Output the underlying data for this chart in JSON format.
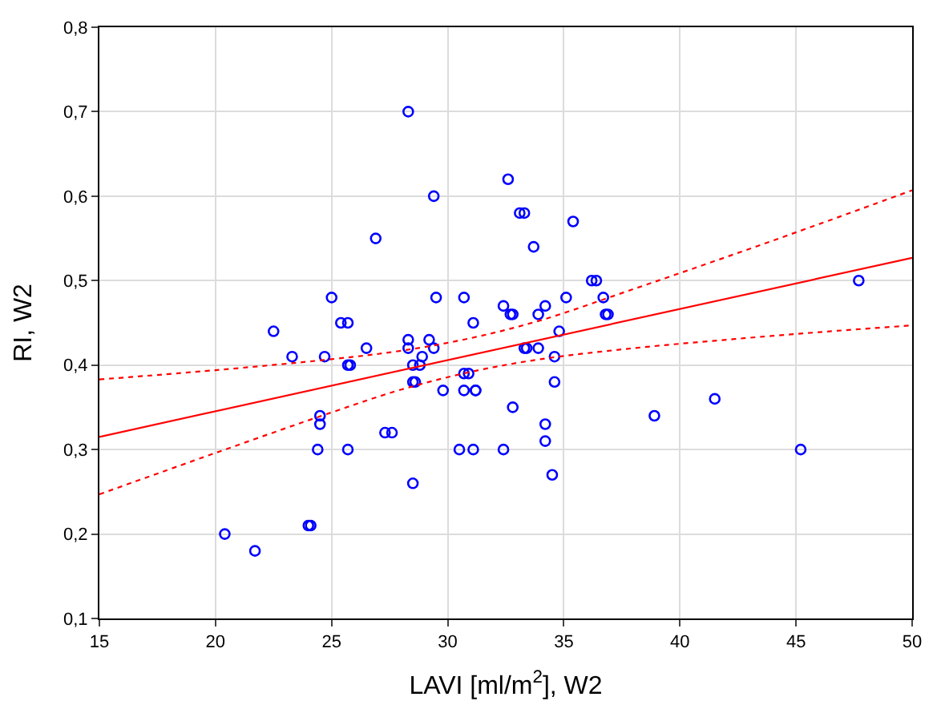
{
  "chart_data": {
    "type": "scatter",
    "xlabel": "LAVI [ml/m$^{2}$], W2",
    "ylabel": "RI, W2",
    "xlim": [
      15,
      50
    ],
    "ylim": [
      0.1,
      0.8
    ],
    "xticks": [
      15,
      20,
      25,
      30,
      35,
      40,
      45,
      50
    ],
    "yticks": [
      {
        "value": 0.1,
        "label": "0,1"
      },
      {
        "value": 0.2,
        "label": "0,2"
      },
      {
        "value": 0.3,
        "label": "0,3"
      },
      {
        "value": 0.4,
        "label": "0,4"
      },
      {
        "value": 0.5,
        "label": "0,5"
      },
      {
        "value": 0.6,
        "label": "0,6"
      },
      {
        "value": 0.7,
        "label": "0,7"
      },
      {
        "value": 0.8,
        "label": "0,8"
      }
    ],
    "grid": true,
    "series": [
      {
        "marker": "circle",
        "color": "#0000ff",
        "x": [
          20.4,
          21.7,
          24.0,
          24.1,
          24.5,
          24.5,
          24.4,
          25.7,
          27.3,
          27.6,
          28.5,
          28.5,
          29.8,
          30.7,
          31.2,
          31.2,
          30.5,
          31.1,
          32.4,
          32.8,
          34.2,
          34.2,
          34.5,
          34.6,
          38.9,
          41.5,
          45.2,
          28.3,
          29.4,
          26.9,
          25.0,
          22.5,
          25.4,
          25.7,
          23.3,
          24.7,
          25.7,
          25.8,
          26.5,
          28.3,
          28.3,
          29.2,
          28.9,
          29.4,
          28.5,
          28.8,
          28.6,
          29.5,
          30.7,
          31.1,
          30.7,
          30.9,
          32.4,
          32.6,
          33.1,
          33.3,
          35.4,
          33.7,
          36.2,
          36.4,
          47.7,
          35.1,
          36.7,
          36.8,
          36.9,
          32.7,
          32.8,
          33.9,
          34.2,
          34.8,
          33.3,
          33.4,
          33.9,
          34.6
        ],
        "values": [
          0.2,
          0.18,
          0.21,
          0.21,
          0.34,
          0.33,
          0.3,
          0.3,
          0.32,
          0.32,
          0.26,
          0.38,
          0.37,
          0.37,
          0.37,
          0.37,
          0.3,
          0.3,
          0.3,
          0.35,
          0.33,
          0.31,
          0.27,
          0.38,
          0.34,
          0.36,
          0.3,
          0.7,
          0.6,
          0.55,
          0.48,
          0.44,
          0.45,
          0.45,
          0.41,
          0.41,
          0.4,
          0.4,
          0.42,
          0.43,
          0.42,
          0.43,
          0.41,
          0.42,
          0.4,
          0.4,
          0.38,
          0.48,
          0.48,
          0.45,
          0.39,
          0.39,
          0.47,
          0.62,
          0.58,
          0.58,
          0.57,
          0.54,
          0.5,
          0.5,
          0.5,
          0.48,
          0.48,
          0.46,
          0.46,
          0.46,
          0.46,
          0.46,
          0.47,
          0.44,
          0.42,
          0.42,
          0.42,
          0.41
        ]
      },
      {
        "type": "line",
        "color": "#ff0000",
        "line_style": "solid",
        "x": [
          15,
          50
        ],
        "values": [
          0.315,
          0.527
        ]
      },
      {
        "type": "line",
        "color": "#ff0000",
        "line_style": "dotted",
        "x": [
          15,
          20,
          25,
          28,
          31,
          34,
          38,
          42,
          46,
          50
        ],
        "values": [
          0.383,
          0.394,
          0.407,
          0.417,
          0.432,
          0.453,
          0.49,
          0.528,
          0.567,
          0.607
        ]
      },
      {
        "type": "line",
        "color": "#ff0000",
        "line_style": "dotted",
        "x": [
          15,
          20,
          25,
          28,
          31,
          34,
          38,
          42,
          46,
          50
        ],
        "values": [
          0.247,
          0.296,
          0.344,
          0.371,
          0.392,
          0.407,
          0.42,
          0.43,
          0.439,
          0.447
        ]
      }
    ]
  }
}
